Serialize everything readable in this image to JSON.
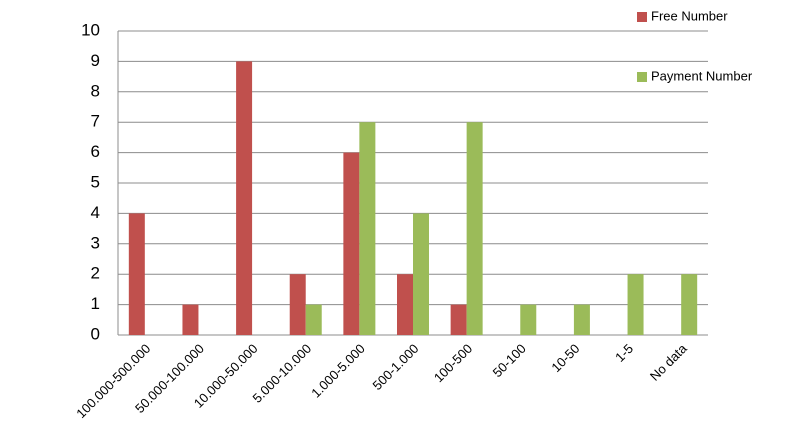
{
  "chart_data": {
    "type": "bar",
    "categories": [
      "100.000-500.000",
      "50.000-100.000",
      "10.000-50.000",
      "5.000-10.000",
      "1.000-5.000",
      "500-1.000",
      "100-500",
      "50-100",
      "10-50",
      "1-5",
      "No data"
    ],
    "series": [
      {
        "name": "Free Number",
        "color": "#c0504d",
        "values": [
          4,
          1,
          9,
          2,
          6,
          2,
          1,
          0,
          0,
          0,
          0
        ]
      },
      {
        "name": "Payment Number",
        "color": "#9bbb59",
        "values": [
          0,
          0,
          0,
          1,
          7,
          4,
          7,
          1,
          1,
          2,
          2
        ]
      }
    ],
    "ylim": [
      0,
      10
    ],
    "yticks": [
      0,
      1,
      2,
      3,
      4,
      5,
      6,
      7,
      8,
      9,
      10
    ],
    "grid": true,
    "legend": "top-right"
  }
}
